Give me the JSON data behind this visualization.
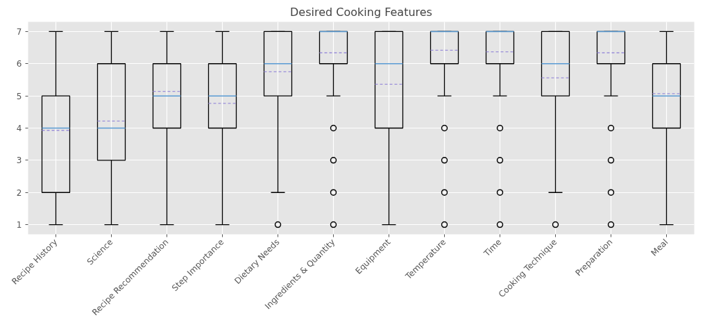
{
  "chart_data": {
    "type": "box",
    "title": "Desired Cooking Features",
    "categories": [
      "Recipe History",
      "Science",
      "Recipe Recommendation",
      "Step Importance",
      "Dietary Needs",
      "Ingredients & Quantity",
      "Equipment",
      "Temperature",
      "Time",
      "Cooking Technique",
      "Preparation",
      "Meal"
    ],
    "boxes": [
      {
        "low": 1,
        "q1": 2,
        "median": 4,
        "q3": 5,
        "high": 7,
        "mean": 3.93
      },
      {
        "low": 1,
        "q1": 3,
        "median": 4,
        "q3": 6,
        "high": 7,
        "mean": 4.22
      },
      {
        "low": 1,
        "q1": 4,
        "median": 5,
        "q3": 6,
        "high": 7,
        "mean": 5.14
      },
      {
        "low": 1,
        "q1": 4,
        "median": 5,
        "q3": 6,
        "high": 7,
        "mean": 4.77
      },
      {
        "low": 2,
        "q1": 5,
        "median": 6,
        "q3": 7,
        "high": 7,
        "mean": 5.75,
        "outliers": [
          1
        ]
      },
      {
        "low": 5,
        "q1": 6,
        "median": 7,
        "q3": 7,
        "high": 7,
        "mean": 6.34,
        "outliers": [
          4,
          3,
          2,
          1
        ]
      },
      {
        "low": 1,
        "q1": 4,
        "median": 6,
        "q3": 7,
        "high": 7,
        "mean": 5.36
      },
      {
        "low": 5,
        "q1": 6,
        "median": 7,
        "q3": 7,
        "high": 7,
        "mean": 6.42,
        "outliers": [
          4,
          3,
          2,
          1
        ]
      },
      {
        "low": 5,
        "q1": 6,
        "median": 7,
        "q3": 7,
        "high": 7,
        "mean": 6.37,
        "outliers": [
          4,
          3,
          2,
          1
        ]
      },
      {
        "low": 2,
        "q1": 5,
        "median": 6,
        "q3": 7,
        "high": 7,
        "mean": 5.56,
        "outliers": [
          1
        ]
      },
      {
        "low": 5,
        "q1": 6,
        "median": 7,
        "q3": 7,
        "high": 7,
        "mean": 6.34,
        "outliers": [
          4,
          3,
          2,
          1
        ]
      },
      {
        "low": 1,
        "q1": 4,
        "median": 5,
        "q3": 6,
        "high": 7,
        "mean": 5.07
      }
    ],
    "ylim": [
      0.7,
      7.3
    ],
    "yticks": [
      1,
      2,
      3,
      4,
      5,
      6,
      7
    ],
    "grid": true
  }
}
